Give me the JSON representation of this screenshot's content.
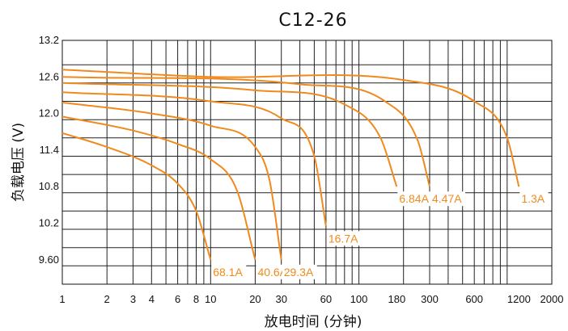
{
  "chart_data": {
    "type": "line",
    "title": "C12-26",
    "xlabel": "放电时间 (分钟)",
    "ylabel": "负载电压 (V)",
    "x_scale": "log",
    "xlim": [
      1,
      2000
    ],
    "ylim": [
      9.2,
      13.2
    ],
    "x_ticks": [
      {
        "value": 1,
        "label": "1"
      },
      {
        "value": 2,
        "label": "2"
      },
      {
        "value": 3,
        "label": "3"
      },
      {
        "value": 4,
        "label": "4"
      },
      {
        "value": 6,
        "label": "6"
      },
      {
        "value": 8,
        "label": "8"
      },
      {
        "value": 10,
        "label": "10"
      },
      {
        "value": 20,
        "label": "20"
      },
      {
        "value": 30,
        "label": "30"
      },
      {
        "value": 60,
        "label": "60"
      },
      {
        "value": 100,
        "label": "100"
      },
      {
        "value": 180,
        "label": "180"
      },
      {
        "value": 300,
        "label": "300"
      },
      {
        "value": 600,
        "label": "600"
      },
      {
        "value": 1200,
        "label": "1200"
      },
      {
        "value": 2000,
        "label": "2000"
      }
    ],
    "y_ticks": [
      {
        "value": 13.2,
        "label": "13.2"
      },
      {
        "value": 12.6,
        "label": "12.6"
      },
      {
        "value": 12.0,
        "label": "12.0"
      },
      {
        "value": 11.4,
        "label": "11.4"
      },
      {
        "value": 10.8,
        "label": "10.8"
      },
      {
        "value": 10.2,
        "label": "10.2"
      },
      {
        "value": 9.6,
        "label": "9.60"
      }
    ],
    "grid": true,
    "line_color": "#f08a1c",
    "series": [
      {
        "name": "68.1A",
        "points": [
          [
            1,
            11.68
          ],
          [
            2,
            11.45
          ],
          [
            4,
            11.15
          ],
          [
            6,
            10.85
          ],
          [
            8,
            10.4
          ],
          [
            10,
            9.6
          ]
        ]
      },
      {
        "name": "40.6A",
        "points": [
          [
            1,
            11.95
          ],
          [
            3,
            11.72
          ],
          [
            6,
            11.5
          ],
          [
            10,
            11.25
          ],
          [
            15,
            10.75
          ],
          [
            20,
            9.6
          ]
        ]
      },
      {
        "name": "29.3A",
        "points": [
          [
            1,
            12.18
          ],
          [
            4,
            12.0
          ],
          [
            10,
            11.8
          ],
          [
            20,
            11.45
          ],
          [
            25,
            10.9
          ],
          [
            30,
            9.6
          ]
        ]
      },
      {
        "name": "16.7A",
        "points": [
          [
            1,
            12.35
          ],
          [
            10,
            12.2
          ],
          [
            30,
            11.92
          ],
          [
            50,
            11.3
          ],
          [
            60,
            10.15
          ]
        ]
      },
      {
        "name": "6.84A",
        "points": [
          [
            1,
            12.5
          ],
          [
            20,
            12.38
          ],
          [
            80,
            12.15
          ],
          [
            140,
            11.6
          ],
          [
            180,
            10.8
          ]
        ]
      },
      {
        "name": "4.47A",
        "points": [
          [
            1,
            12.6
          ],
          [
            40,
            12.48
          ],
          [
            150,
            12.2
          ],
          [
            250,
            11.55
          ],
          [
            300,
            10.8
          ]
        ]
      },
      {
        "name": "1.3A",
        "points": [
          [
            1,
            12.72
          ],
          [
            10,
            12.6
          ],
          [
            200,
            12.55
          ],
          [
            600,
            12.2
          ],
          [
            1000,
            11.6
          ],
          [
            1200,
            10.8
          ]
        ]
      }
    ]
  }
}
